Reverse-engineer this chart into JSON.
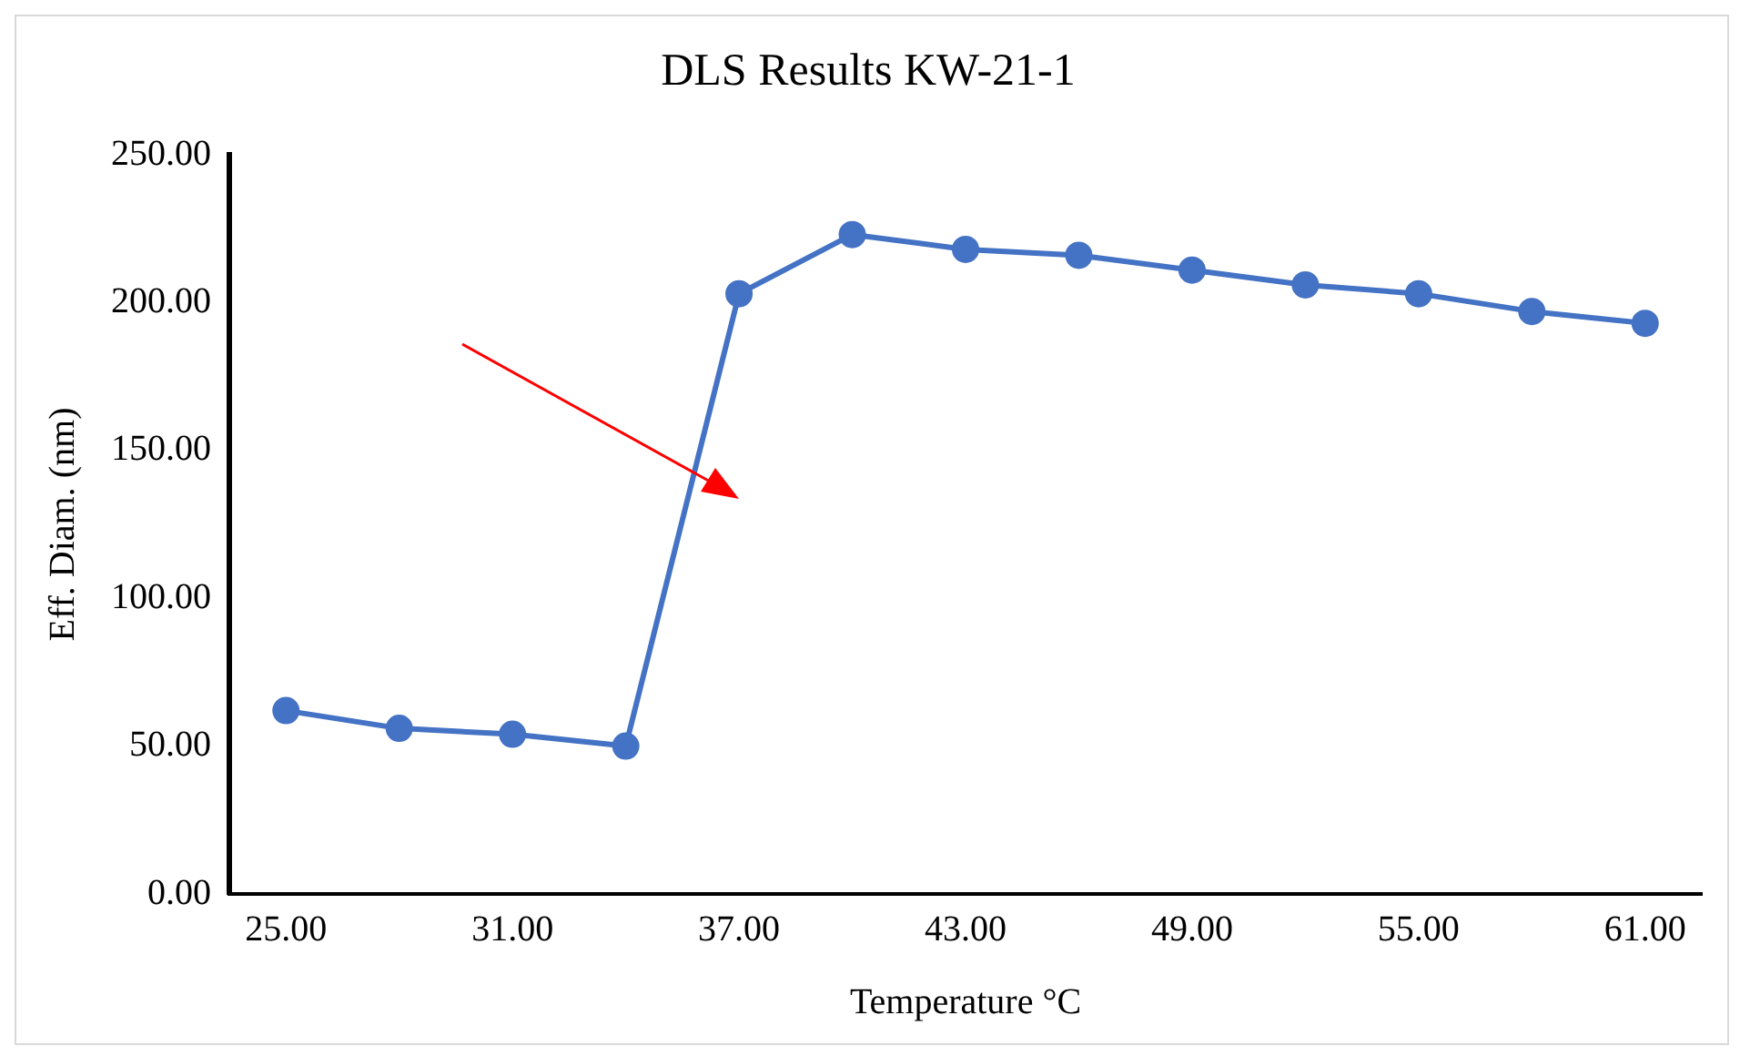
{
  "chart_data": {
    "type": "line",
    "title": "DLS Results KW-21-1",
    "xlabel": "Temperature °C",
    "ylabel": "Eff. Diam. (nm)",
    "x": [
      25,
      28,
      31,
      34,
      37,
      40,
      43,
      46,
      49,
      52,
      55,
      58,
      61
    ],
    "series": [
      {
        "color": "#4472c4",
        "values": [
          62,
          56,
          54,
          50,
          203,
          223,
          218,
          216,
          211,
          206,
          203,
          197,
          193
        ]
      }
    ],
    "xlim": [
      23.5,
      62.5
    ],
    "xticks": [
      {
        "value": 25,
        "label": "25.00"
      },
      {
        "value": 31,
        "label": "31.00"
      },
      {
        "value": 37,
        "label": "37.00"
      },
      {
        "value": 43,
        "label": "43.00"
      },
      {
        "value": 49,
        "label": "49.00"
      },
      {
        "value": 55,
        "label": "55.00"
      },
      {
        "value": 61,
        "label": "61.00"
      }
    ],
    "ylim": [
      0,
      250
    ],
    "yticks": [
      {
        "value": 0,
        "label": "0.00"
      },
      {
        "value": 50,
        "label": "50.00"
      },
      {
        "value": 100,
        "label": "100.00"
      },
      {
        "value": 150,
        "label": "150.00"
      },
      {
        "value": 200,
        "label": "200.00"
      },
      {
        "value": 250,
        "label": "250.00"
      }
    ],
    "grid": false,
    "legend": false,
    "marker": "circle",
    "line_style": "solid"
  }
}
